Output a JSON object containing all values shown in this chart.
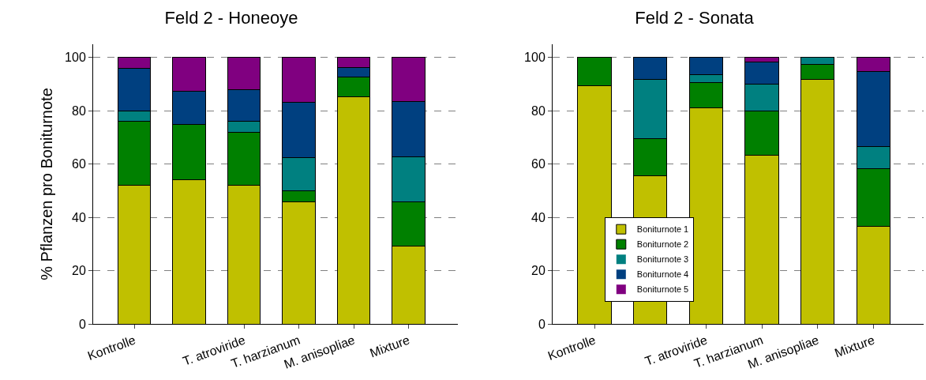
{
  "chart_data": [
    {
      "type": "bar",
      "stacked": true,
      "title": "Feld 2 - Honeoye",
      "ylabel": "% Pflanzen pro Boniturnote",
      "categories": [
        "Kontrolle",
        null,
        "T. atroviride",
        "T. harzianum",
        "M. anisopliae",
        "Mixture"
      ],
      "ylim": [
        0,
        105
      ],
      "yticks": [
        0,
        20,
        40,
        60,
        80,
        100
      ],
      "grid": "y",
      "legend": false,
      "series": [
        {
          "color": "#c0c000",
          "values": [
            52,
            54,
            52,
            45.8,
            85.2,
            29.2
          ]
        },
        {
          "color": "#008000",
          "values": [
            24,
            21,
            20,
            4.2,
            7.4,
            16.7
          ]
        },
        {
          "color": "#008080",
          "values": [
            4,
            0,
            4,
            12.5,
            0,
            16.7
          ]
        },
        {
          "color": "#004080",
          "values": [
            16,
            12.5,
            12,
            20.8,
            3.7,
            20.8
          ]
        },
        {
          "color": "#800080",
          "values": [
            4,
            12.5,
            12,
            16.7,
            3.7,
            16.7
          ]
        }
      ]
    },
    {
      "type": "bar",
      "stacked": true,
      "title": "Feld 2 - Sonata",
      "categories": [
        "Kontrolle",
        null,
        "T. atroviride",
        "T. harzianum",
        "M. anisopliae",
        "Mixture"
      ],
      "ylim": [
        0,
        105
      ],
      "yticks": [
        0,
        20,
        40,
        60,
        80,
        100
      ],
      "grid": "y",
      "legend": "bottom left",
      "series": [
        {
          "name": "Boniturnote 1",
          "color": "#c0c000",
          "values": [
            89.3,
            55.6,
            81.2,
            63.4,
            91.9,
            36.6
          ]
        },
        {
          "name": "Boniturnote 2",
          "color": "#008000",
          "values": [
            10.7,
            13.9,
            9.4,
            16.6,
            5.4,
            21.7
          ]
        },
        {
          "name": "Boniturnote 3",
          "color": "#008080",
          "values": [
            0,
            22.2,
            3.1,
            9.9,
            2.7,
            8.4
          ]
        },
        {
          "name": "Boniturnote 4",
          "color": "#004080",
          "values": [
            0,
            8.3,
            6.3,
            8.5,
            0,
            28.2
          ]
        },
        {
          "name": "Boniturnote 5",
          "color": "#800080",
          "values": [
            0,
            0,
            0,
            1.6,
            0,
            5.1
          ]
        }
      ]
    }
  ]
}
